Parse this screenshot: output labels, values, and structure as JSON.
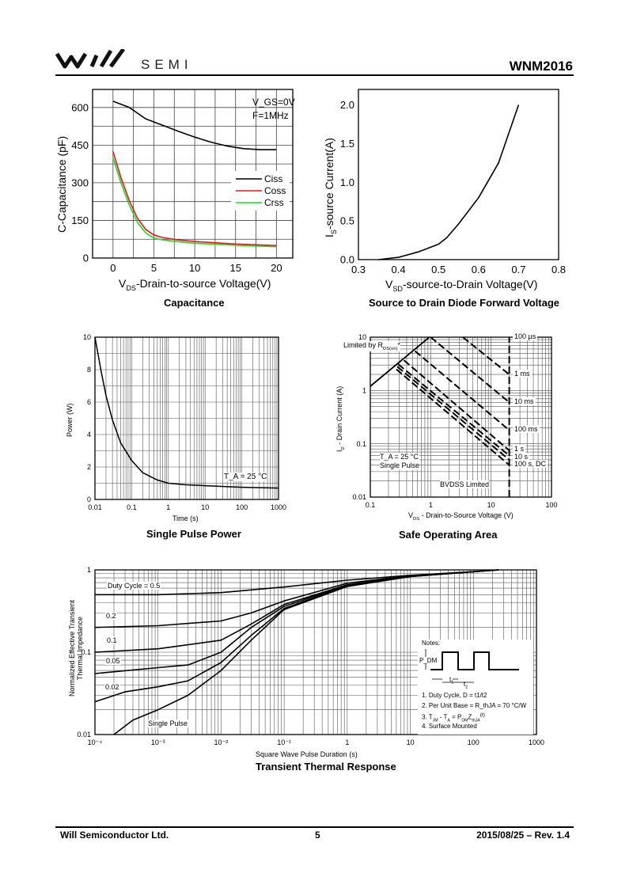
{
  "header": {
    "brand": "SEMI",
    "part_number": "WNM2016"
  },
  "footer": {
    "company": "Will Semiconductor Ltd.",
    "page": "5",
    "date_rev": "2015/08/25 – Rev. 1.4"
  },
  "colors": {
    "ciss": "#000000",
    "coss": "#e8141b",
    "crss": "#22d622"
  },
  "chart_data": [
    {
      "type": "line",
      "title": "Capacitance",
      "xlabel": "V_DS-Drain-to-source Voltage(V)",
      "xlabel_main": "V",
      "xlabel_sub": "DS",
      "xlabel_rest": "-Drain-to-source Voltage(V)",
      "ylabel": "C-Capacitance (pF)",
      "xscale": "linear",
      "yscale": "linear",
      "xlim": [
        -2.5,
        22
      ],
      "ylim": [
        0,
        672
      ],
      "xticks": [
        0,
        5,
        10,
        15,
        20
      ],
      "xticklabels": [
        "0",
        "5",
        "10",
        "15",
        "20"
      ],
      "yticks": [
        0,
        150,
        300,
        450,
        600
      ],
      "yticklabels": [
        "0",
        "150",
        "300",
        "450",
        "600"
      ],
      "xgrid": [
        0,
        2.5,
        5,
        7.5,
        10,
        12.5,
        15,
        17.5,
        20
      ],
      "ygrid": [
        75,
        150,
        225,
        300,
        375,
        450,
        525,
        600
      ],
      "annotation": [
        "V_GS=0V",
        "F=1MHz"
      ],
      "legend": "right",
      "series": [
        {
          "name": "Ciss",
          "color": "#000000",
          "points": [
            [
              0,
              625
            ],
            [
              2,
              600
            ],
            [
              4,
              555
            ],
            [
              6,
              530
            ],
            [
              8,
              505
            ],
            [
              10,
              482
            ],
            [
              12,
              462
            ],
            [
              14,
              446
            ],
            [
              16,
              436
            ],
            [
              18,
              432
            ],
            [
              20,
              432
            ]
          ]
        },
        {
          "name": "Coss",
          "color": "#e8141b",
          "points": [
            [
              0,
              425
            ],
            [
              1,
              318
            ],
            [
              2,
              228
            ],
            [
              3,
              158
            ],
            [
              4,
              114
            ],
            [
              5,
              92
            ],
            [
              6,
              82
            ],
            [
              8,
              72
            ],
            [
              10,
              66
            ],
            [
              15,
              56
            ],
            [
              20,
              50
            ]
          ]
        },
        {
          "name": "Crss",
          "color": "#22d622",
          "points": [
            [
              0,
              400
            ],
            [
              1,
              298
            ],
            [
              2,
              210
            ],
            [
              3,
              142
            ],
            [
              4,
              100
            ],
            [
              5,
              80
            ],
            [
              6,
              73
            ],
            [
              8,
              65
            ],
            [
              10,
              59
            ],
            [
              15,
              51
            ],
            [
              20,
              45
            ]
          ]
        }
      ]
    },
    {
      "type": "line",
      "title": "Source to Drain Diode Forward Voltage",
      "xlabel": "V_SD-source-to-Drain Voltage(V)",
      "xlabel_main": "V",
      "xlabel_sub": "SD",
      "xlabel_rest": "-source-to-Drain Voltage(V)",
      "ylabel": "I_S-source Current(A)",
      "ylabel_main": "I",
      "ylabel_sub": "S",
      "ylabel_rest": "-source Current(A)",
      "xscale": "linear",
      "yscale": "linear",
      "xlim": [
        0.3,
        0.8
      ],
      "ylim": [
        0,
        2.2
      ],
      "xticks": [
        0.3,
        0.4,
        0.5,
        0.6,
        0.7,
        0.8
      ],
      "xticklabels": [
        "0.3",
        "0.4",
        "0.5",
        "0.6",
        "0.7",
        "0.8"
      ],
      "yticks": [
        0,
        0.5,
        1.0,
        1.5,
        2.0
      ],
      "yticklabels": [
        "0.0",
        "0.5",
        "1.0",
        "1.5",
        "2.0"
      ],
      "xgrid": [],
      "ygrid": [],
      "series": [
        {
          "name": "Is",
          "color": "#000000",
          "points": [
            [
              0.35,
              0
            ],
            [
              0.4,
              0.03
            ],
            [
              0.45,
              0.1
            ],
            [
              0.5,
              0.2
            ],
            [
              0.52,
              0.28
            ],
            [
              0.55,
              0.46
            ],
            [
              0.6,
              0.8
            ],
            [
              0.65,
              1.25
            ],
            [
              0.7,
              2.0
            ]
          ]
        }
      ]
    },
    {
      "type": "line",
      "title": "Single Pulse Power",
      "xlabel": "Time (s)",
      "ylabel": "Power  (W)",
      "xscale": "log",
      "yscale": "linear",
      "xlim": [
        0.01,
        1000
      ],
      "ylim": [
        0,
        10
      ],
      "xticks": [
        0.01,
        0.1,
        1,
        10,
        100,
        1000
      ],
      "xticklabels": [
        "0.01",
        "0.1",
        "1",
        "10",
        "100",
        "1000"
      ],
      "yticks": [
        0,
        2,
        4,
        6,
        8,
        10
      ],
      "yticklabels": [
        "0",
        "2",
        "4",
        "6",
        "8",
        "10"
      ],
      "xgrid": "log",
      "ygrid": [
        1,
        2,
        3,
        4,
        5,
        6,
        7,
        8,
        9
      ],
      "annotation": [
        "T_A = 25 °C"
      ],
      "series": [
        {
          "name": "Power",
          "color": "#000000",
          "points": [
            [
              0.01,
              10
            ],
            [
              0.015,
              7.8
            ],
            [
              0.02,
              6.4
            ],
            [
              0.03,
              4.9
            ],
            [
              0.05,
              3.5
            ],
            [
              0.1,
              2.4
            ],
            [
              0.2,
              1.65
            ],
            [
              0.5,
              1.2
            ],
            [
              1,
              1.0
            ],
            [
              3,
              0.9
            ],
            [
              10,
              0.85
            ],
            [
              100,
              0.75
            ],
            [
              1000,
              0.7
            ]
          ]
        }
      ]
    },
    {
      "type": "line",
      "title": "Safe Operating Area",
      "xlabel": "V_DS - Drain-to-Source Voltage (V)",
      "ylabel": "I_D - Drain Current (A)",
      "xscale": "log",
      "yscale": "log",
      "xlim": [
        0.1,
        100
      ],
      "ylim": [
        0.01,
        10
      ],
      "xticks": [
        0.1,
        1,
        10,
        100
      ],
      "xticklabels": [
        "0.1",
        "1",
        "10",
        "100"
      ],
      "yticks": [
        0.01,
        0.1,
        1,
        10
      ],
      "yticklabels": [
        "0.01",
        "0.1",
        "1",
        "10"
      ],
      "xgrid": "log",
      "ygrid": "log",
      "annotation": [
        "Limited by R_DS(on)*",
        "T_A = 25 °C",
        "Single Pulse",
        "BVDSS Limited"
      ],
      "series": [
        {
          "name": "Limited by RDS(on)",
          "color": "#000000",
          "dash": false,
          "points": [
            [
              0.1,
              1.2
            ],
            [
              0.95,
              10
            ]
          ]
        },
        {
          "name": "100 µs",
          "color": "#000000",
          "dash": true,
          "points": [
            [
              3.4,
              10
            ],
            [
              20,
              2.0
            ]
          ]
        },
        {
          "name": "1 ms",
          "color": "#000000",
          "dash": true,
          "points": [
            [
              1.0,
              10
            ],
            [
              20,
              0.6
            ]
          ]
        },
        {
          "name": "10 ms",
          "color": "#000000",
          "dash": true,
          "points": [
            [
              0.55,
              5.5
            ],
            [
              20,
              0.18
            ]
          ]
        },
        {
          "name": "100 ms",
          "color": "#000000",
          "dash": true,
          "points": [
            [
              0.36,
              3.7
            ],
            [
              20,
              0.075
            ]
          ]
        },
        {
          "name": "1 s",
          "color": "#000000",
          "dash": true,
          "points": [
            [
              0.29,
              3.1
            ],
            [
              20,
              0.06
            ]
          ]
        },
        {
          "name": "10 s",
          "color": "#000000",
          "dash": true,
          "points": [
            [
              0.28,
              2.8
            ],
            [
              20,
              0.05
            ]
          ]
        },
        {
          "name": "100 s, DC",
          "color": "#000000",
          "dash": true,
          "points": [
            [
              0.27,
              2.5
            ],
            [
              20,
              0.04
            ]
          ]
        },
        {
          "name": "BVDSS",
          "color": "#000000",
          "dash": true,
          "points": [
            [
              20,
              0.01
            ],
            [
              20,
              10
            ]
          ]
        }
      ],
      "line_labels": [
        {
          "text": "100 µs",
          "y": 10
        },
        {
          "text": "1 ms",
          "y": 2.0
        },
        {
          "text": "10 ms",
          "y": 0.6
        },
        {
          "text": "100 ms",
          "y": 0.18
        },
        {
          "text": "1 s",
          "y": 0.077
        },
        {
          "text": "10 s",
          "y": 0.055
        },
        {
          "text": "100 s, DC",
          "y": 0.04
        }
      ]
    },
    {
      "type": "line",
      "title": "Transient Thermal Response",
      "xlabel": "Square Wave Pulse Duration (s)",
      "ylabel": "Normalized Effective Transient Thermal Impedance",
      "ylabel_line1": "Normalized Effective Transient",
      "ylabel_line2": "Thermal Impedance",
      "xscale": "log",
      "yscale": "log",
      "xlim": [
        0.0001,
        1000
      ],
      "ylim": [
        0.01,
        1
      ],
      "xticks": [
        0.0001,
        0.001,
        0.01,
        0.1,
        1,
        10,
        100,
        1000
      ],
      "xticklabels": [
        "10⁻⁴",
        "10⁻³",
        "10⁻²",
        "10⁻¹",
        "1",
        "10",
        "100",
        "1000"
      ],
      "yticks": [
        0.01,
        0.1,
        1
      ],
      "yticklabels": [
        "0.01",
        "0.1",
        "1"
      ],
      "xgrid": "log",
      "ygrid": "log",
      "series": [
        {
          "name": "Duty Cycle = 0.5",
          "color": "#000000",
          "points": [
            [
              0.0001,
              0.5
            ],
            [
              0.001,
              0.5
            ],
            [
              0.01,
              0.53
            ],
            [
              0.1,
              0.62
            ],
            [
              1,
              0.75
            ],
            [
              10,
              0.86
            ],
            [
              100,
              0.95
            ],
            [
              250,
              1
            ]
          ]
        },
        {
          "name": "0.2",
          "color": "#000000",
          "points": [
            [
              0.0001,
              0.2
            ],
            [
              0.001,
              0.21
            ],
            [
              0.01,
              0.24
            ],
            [
              0.03,
              0.3
            ],
            [
              0.1,
              0.42
            ],
            [
              1,
              0.69
            ],
            [
              10,
              0.85
            ],
            [
              100,
              0.95
            ],
            [
              250,
              1
            ]
          ]
        },
        {
          "name": "0.1",
          "color": "#000000",
          "points": [
            [
              0.0001,
              0.1
            ],
            [
              0.001,
              0.11
            ],
            [
              0.01,
              0.14
            ],
            [
              0.03,
              0.22
            ],
            [
              0.1,
              0.38
            ],
            [
              1,
              0.66
            ],
            [
              10,
              0.84
            ],
            [
              100,
              0.95
            ],
            [
              250,
              1
            ]
          ]
        },
        {
          "name": "0.05",
          "color": "#000000",
          "points": [
            [
              0.0001,
              0.055
            ],
            [
              0.001,
              0.065
            ],
            [
              0.003,
              0.07
            ],
            [
              0.01,
              0.1
            ],
            [
              0.03,
              0.2
            ],
            [
              0.1,
              0.36
            ],
            [
              1,
              0.65
            ],
            [
              10,
              0.84
            ],
            [
              100,
              0.95
            ],
            [
              250,
              1
            ]
          ]
        },
        {
          "name": "0.02",
          "color": "#000000",
          "points": [
            [
              0.0001,
              0.025
            ],
            [
              0.0003,
              0.033
            ],
            [
              0.001,
              0.038
            ],
            [
              0.003,
              0.045
            ],
            [
              0.01,
              0.075
            ],
            [
              0.03,
              0.16
            ],
            [
              0.1,
              0.34
            ],
            [
              1,
              0.64
            ],
            [
              10,
              0.83
            ],
            [
              100,
              0.95
            ],
            [
              250,
              1
            ]
          ]
        },
        {
          "name": "Single Pulse",
          "color": "#000000",
          "points": [
            [
              0.0002,
              0.01
            ],
            [
              0.0004,
              0.015
            ],
            [
              0.001,
              0.02
            ],
            [
              0.003,
              0.03
            ],
            [
              0.01,
              0.06
            ],
            [
              0.03,
              0.14
            ],
            [
              0.1,
              0.33
            ],
            [
              1,
              0.63
            ],
            [
              10,
              0.83
            ],
            [
              100,
              0.95
            ],
            [
              250,
              1
            ]
          ]
        }
      ],
      "curve_labels": [
        "Duty Cycle = 0.5",
        "0.2",
        "0.1",
        "0.05",
        "0.02",
        "Single Pulse"
      ],
      "notes": {
        "heading": "Notes:",
        "pdm": "P_DM",
        "t1": "t1",
        "t2": "t2",
        "items": [
          "1. Duty Cycle, D = t1/t2",
          "2. Per Unit Base = R_thJA = 70 °C/W",
          "3. T_JM - T_A = P_DM Z_thJA(t)",
          "4. Surface Mounted"
        ]
      }
    }
  ]
}
